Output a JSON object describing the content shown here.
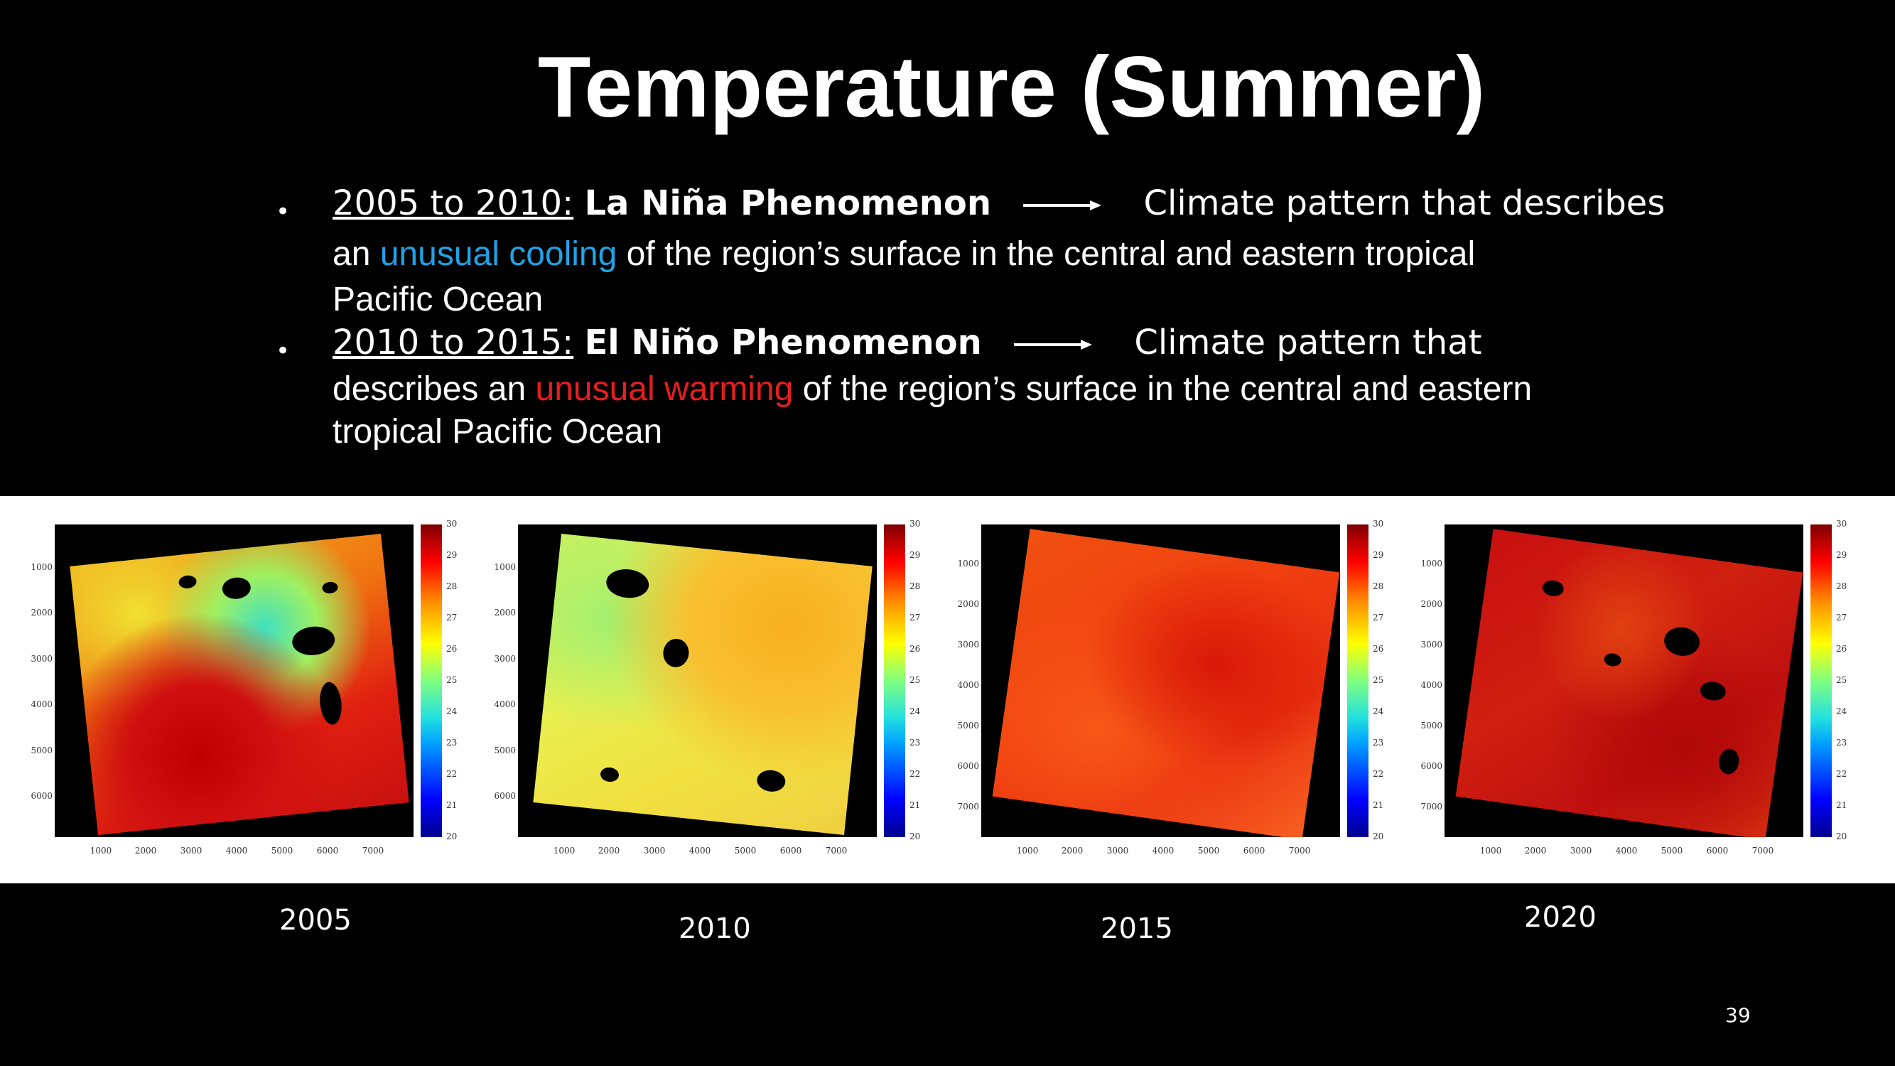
{
  "slide": {
    "title": "Temperature (Summer)",
    "page_number": "39"
  },
  "bullets": [
    {
      "range": "2005 to 2010:",
      "phenomenon": "La Niña Phenomenon",
      "desc_start": "Climate pattern that describes",
      "line2_pre": "an ",
      "highlight": "unusual cooling",
      "line2_post": " of the region’s surface in the central and eastern tropical",
      "line3": "Pacific Ocean",
      "highlight_color": "#1ea3e6"
    },
    {
      "range": "2010 to 2015:",
      "phenomenon": "El Niño Phenomenon",
      "desc_start": "Climate pattern that",
      "line2_pre": "describes an ",
      "highlight": "unusual warming",
      "line2_post": " of the region’s surface in the central and eastern",
      "line3": "tropical Pacific Ocean",
      "highlight_color": "#e81e1e"
    }
  ],
  "maps": {
    "x_ticks": [
      "1000",
      "2000",
      "3000",
      "4000",
      "5000",
      "6000",
      "7000"
    ],
    "y_ticks": [
      "1000",
      "2000",
      "3000",
      "4000",
      "5000",
      "6000",
      "7000"
    ],
    "colorbar_ticks": [
      "30",
      "29",
      "28",
      "27",
      "26",
      "25",
      "24",
      "23",
      "22",
      "21",
      "20"
    ],
    "panels": [
      {
        "year": "2005"
      },
      {
        "year": "2010"
      },
      {
        "year": "2015"
      },
      {
        "year": "2020"
      }
    ]
  }
}
